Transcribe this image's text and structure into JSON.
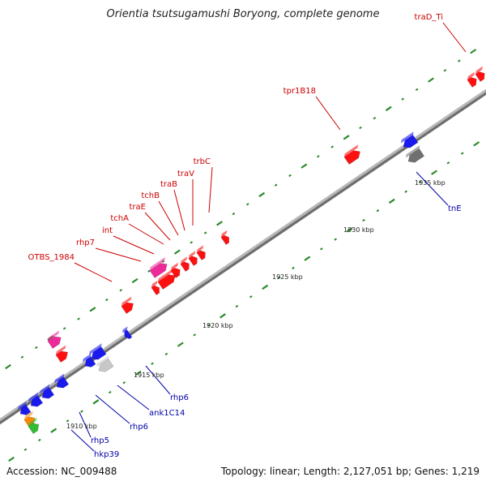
{
  "title": "Orientia tsutsugamushi Boryong, complete genome",
  "footer": {
    "accession": "Accession: NC_009488",
    "summary": "Topology: linear; Length: 2,127,051 bp; Genes: 1,219"
  },
  "colors": {
    "forward_gene": "#ff1010",
    "reverse_gene": "#1a1aee",
    "forward_label": "#cc0000",
    "reverse_label": "#0000aa",
    "pseudogene_pink": "#ee2a9a",
    "gray_gene": "#707070",
    "light_gray_gene": "#c8c8c8",
    "orange_gene": "#ff8800",
    "green_gene": "#33bb33",
    "tick": "#2a8a2a",
    "backbone": "#8a8a8a"
  },
  "scale": {
    "unit": "kbp",
    "labels": [
      "1910 kbp",
      "1915 kbp",
      "1920 kbp",
      "1925 kbp",
      "1930 kbp",
      "1935 kbp"
    ]
  },
  "forward_labels": [
    "traD_Ti",
    "tpr1B18",
    "trbC",
    "traV",
    "traB",
    "tchB",
    "traE",
    "tchA",
    "int",
    "rhp7",
    "OTBS_1984"
  ],
  "reverse_labels": [
    "tnE",
    "rhp6",
    "ank1C14",
    "rhp6",
    "rhp5",
    "hkp39"
  ]
}
